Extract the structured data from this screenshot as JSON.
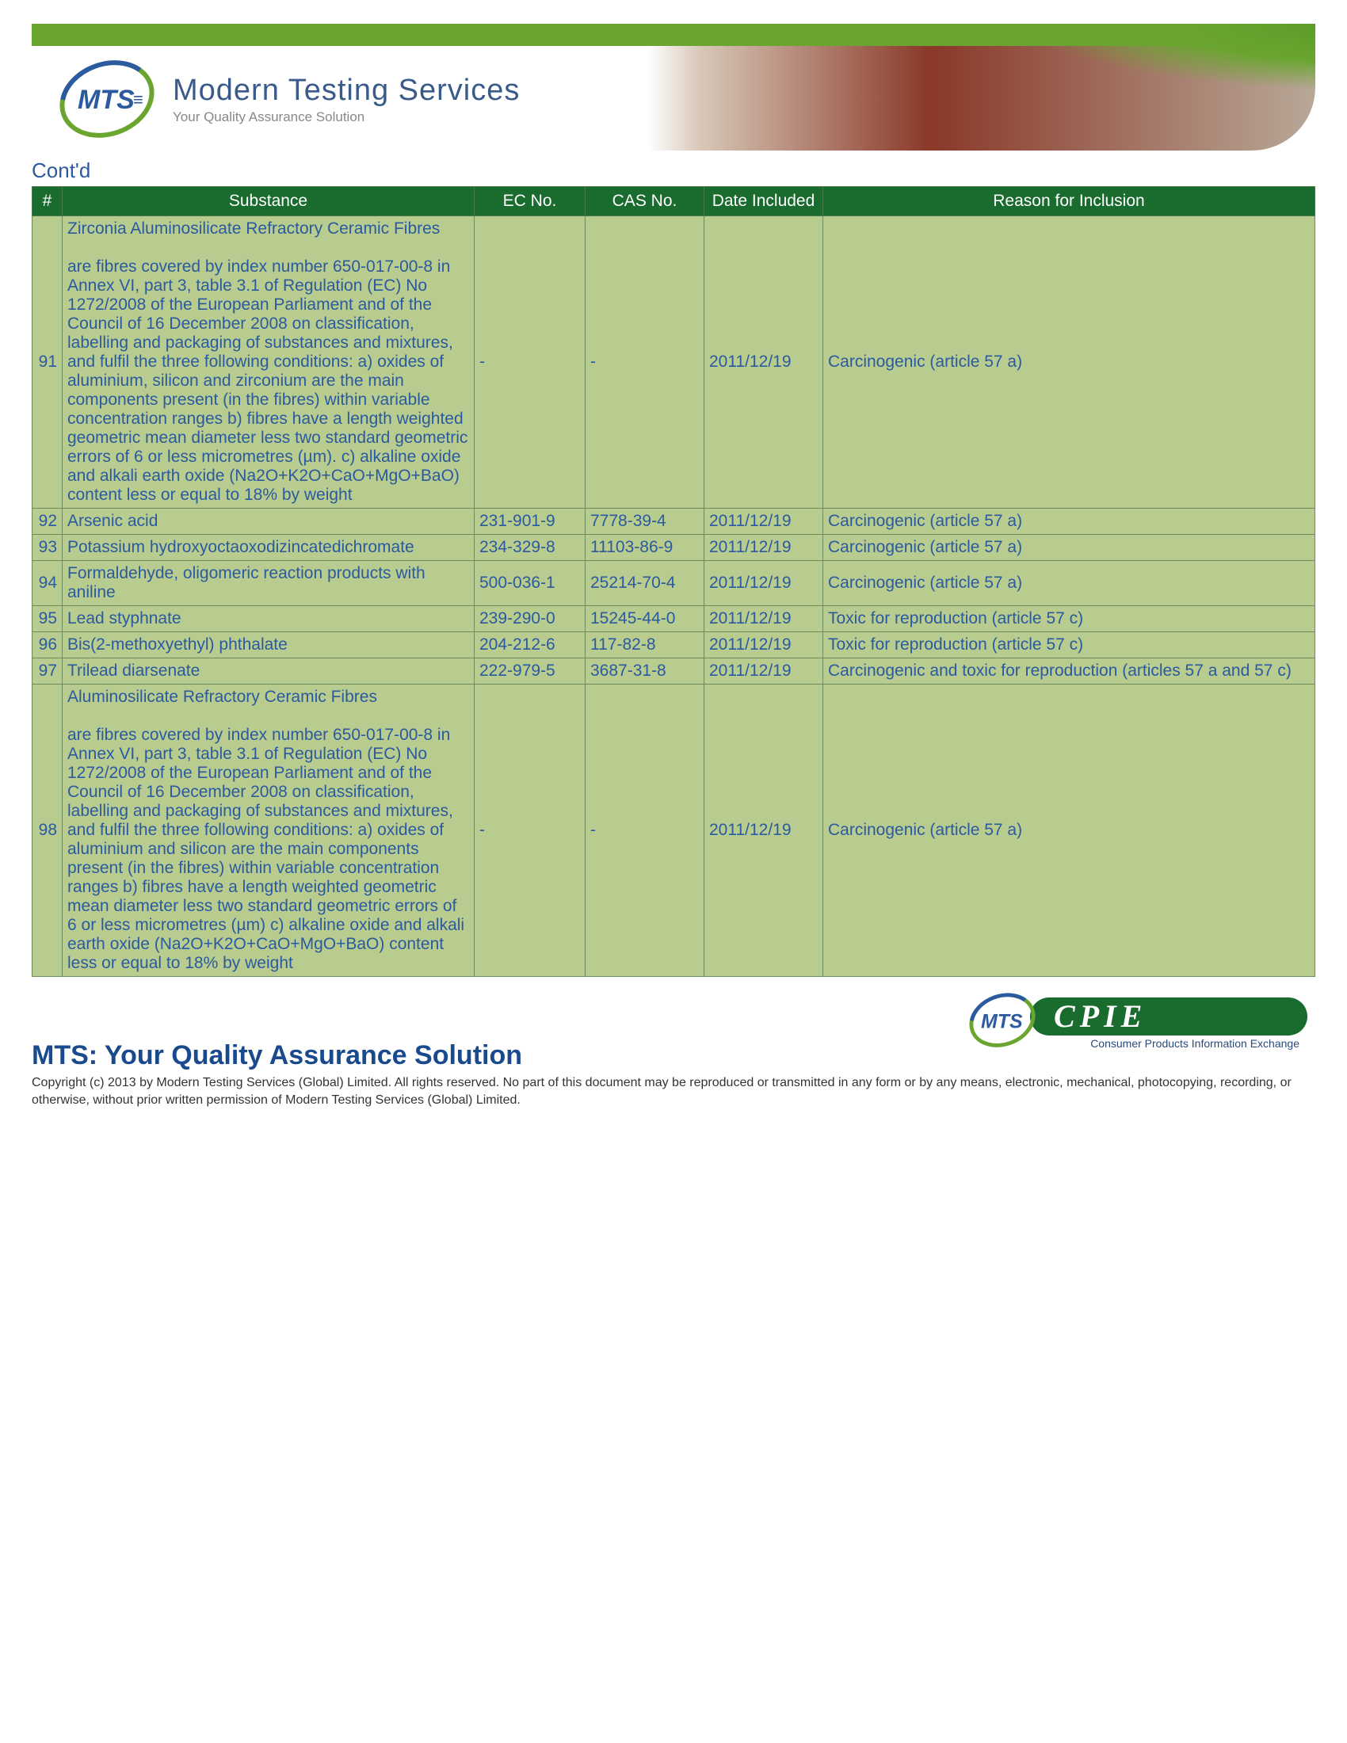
{
  "header": {
    "company_name": "Modern Testing Services",
    "tagline": "Your Quality Assurance Solution",
    "logo_abbrev": "MTS"
  },
  "contd_label": "Cont'd",
  "table": {
    "columns": [
      "#",
      "Substance",
      "EC No.",
      "CAS No.",
      "Date Included",
      "Reason for Inclusion"
    ],
    "header_bg": "#1a6b2e",
    "header_fg": "#ffffff",
    "cell_bg": "#b9cc8f",
    "cell_fg": "#2b5a9e",
    "border_color": "#6a8a5a",
    "rows": [
      {
        "num": "91",
        "substance": "Zirconia Aluminosilicate Refractory Ceramic Fibres\n\nare fibres covered by index number 650-017-00-8 in Annex VI, part 3, table 3.1 of Regulation (EC) No 1272/2008 of the European Parliament and of the Council of 16 December 2008 on classification, labelling and packaging of substances and mixtures, and fulfil the three following conditions: a) oxides of aluminium, silicon and zirconium are the main components present (in the fibres) within variable concentration ranges b) fibres have a length weighted geometric mean diameter less two standard geometric errors of 6 or less micrometres (µm). c) alkaline oxide and alkali earth oxide (Na2O+K2O+CaO+MgO+BaO) content less or equal to 18% by weight",
        "ec": "-",
        "cas": "-",
        "date": "2011/12/19",
        "reason": "Carcinogenic (article 57 a)"
      },
      {
        "num": "92",
        "substance": "Arsenic acid",
        "ec": "231-901-9",
        "cas": "7778-39-4",
        "date": "2011/12/19",
        "reason": "Carcinogenic (article 57 a)"
      },
      {
        "num": "93",
        "substance": "Potassium hydroxyoctaoxodizincatedichromate",
        "ec": "234-329-8",
        "cas": "11103-86-9",
        "date": "2011/12/19",
        "reason": "Carcinogenic (article 57 a)"
      },
      {
        "num": "94",
        "substance": "Formaldehyde, oligomeric reaction products with aniline",
        "ec": "500-036-1",
        "cas": "25214-70-4",
        "date": "2011/12/19",
        "reason": "Carcinogenic (article 57 a)"
      },
      {
        "num": "95",
        "substance": "Lead styphnate",
        "ec": "239-290-0",
        "cas": "15245-44-0",
        "date": "2011/12/19",
        "reason": "Toxic for reproduction (article 57 c)"
      },
      {
        "num": "96",
        "substance": "Bis(2-methoxyethyl) phthalate",
        "ec": "204-212-6",
        "cas": "117-82-8",
        "date": "2011/12/19",
        "reason": "Toxic for reproduction (article 57 c)"
      },
      {
        "num": "97",
        "substance": "Trilead diarsenate",
        "ec": "222-979-5",
        "cas": "3687-31-8",
        "date": "2011/12/19",
        "reason": "Carcinogenic and toxic for reproduction (articles 57 a and 57 c)"
      },
      {
        "num": "98",
        "substance": "Aluminosilicate Refractory Ceramic Fibres\n\nare fibres covered by index number 650-017-00-8 in Annex VI, part 3, table 3.1 of Regulation (EC) No 1272/2008 of the European Parliament and of the Council of 16 December 2008 on classification, labelling and packaging of substances and mixtures, and fulfil the three following conditions: a) oxides of aluminium and silicon are the main components present (in the fibres) within variable concentration ranges b) fibres have a length weighted geometric mean diameter less two standard geometric errors of 6 or less micrometres (µm) c) alkaline oxide and alkali earth oxide (Na2O+K2O+CaO+MgO+BaO) content less or equal to 18% by weight",
        "ec": "-",
        "cas": "-",
        "date": "2011/12/19",
        "reason": "Carcinogenic (article 57 a)"
      }
    ]
  },
  "footer": {
    "cpie_main": "CPIE",
    "cpie_sub": "Consumer Products Information Exchange",
    "title": "MTS: Your Quality Assurance Solution",
    "copyright": "Copyright (c) 2013 by Modern Testing Services (Global) Limited.  All rights reserved. No part of this document may be reproduced or transmitted in any form or by any means, electronic, mechanical, photocopying, recording, or otherwise, without prior written permission of Modern Testing Services (Global) Limited."
  }
}
